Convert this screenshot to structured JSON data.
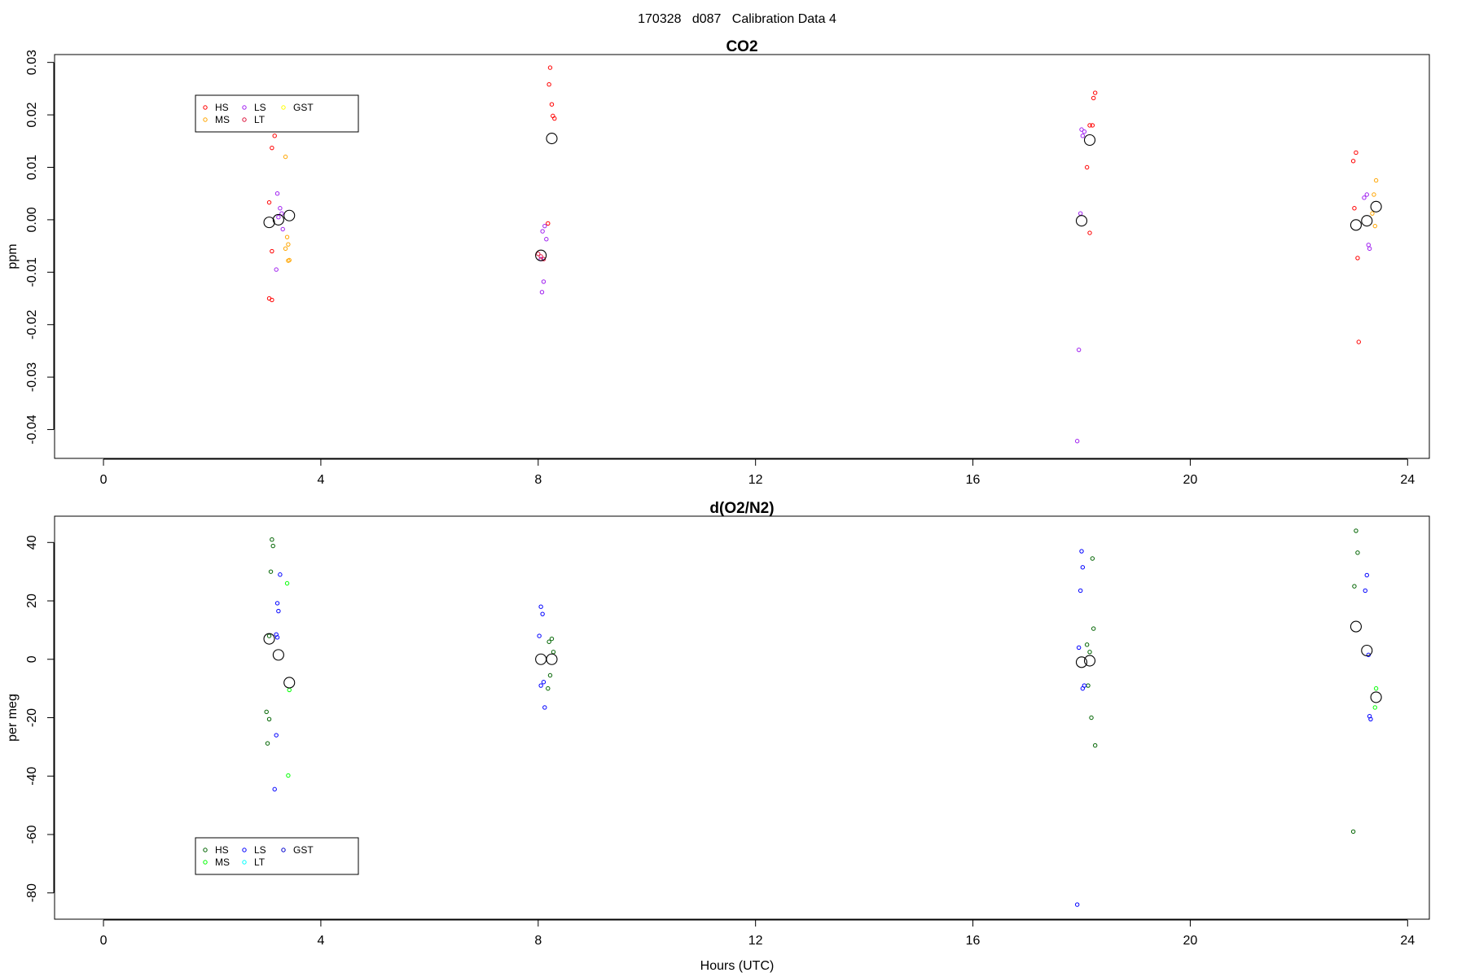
{
  "figure": {
    "title": "170328   d087   Calibration Data 4"
  },
  "chart_data": [
    {
      "type": "scatter",
      "title": "CO2",
      "xlabel": "",
      "ylabel": "ppm",
      "xlim": [
        -0.9,
        24.4
      ],
      "ylim": [
        -0.0455,
        0.0315
      ],
      "xticks": [
        0,
        4,
        8,
        12,
        16,
        20,
        24
      ],
      "yticks": [
        -0.04,
        -0.03,
        -0.02,
        -0.01,
        0.0,
        0.01,
        0.02,
        0.03
      ],
      "ytick_labels": [
        "-0.04",
        "-0.03",
        "-0.02",
        "-0.01",
        "0.00",
        "0.01",
        "0.02",
        "0.03"
      ],
      "grid": false,
      "legend_position": "top-left",
      "legend": [
        {
          "label": "HS",
          "color": "#ff0000"
        },
        {
          "label": "MS",
          "color": "#ffa500"
        },
        {
          "label": "LS",
          "color": "#a020f0"
        },
        {
          "label": "LT",
          "color": "#dc143c"
        },
        {
          "label": "GST",
          "color": "#ffff00"
        }
      ],
      "series": [
        {
          "name": "HS",
          "color": "#ff0000",
          "points": [
            [
              3.05,
              0.0033
            ],
            [
              3.1,
              0.0137
            ],
            [
              3.15,
              0.016
            ],
            [
              3.1,
              -0.006
            ],
            [
              3.05,
              -0.015
            ],
            [
              3.1,
              -0.0153
            ],
            [
              8.22,
              0.029
            ],
            [
              8.2,
              0.0258
            ],
            [
              8.25,
              0.022
            ],
            [
              8.27,
              0.0198
            ],
            [
              8.3,
              0.0193
            ],
            [
              8.18,
              -0.0007
            ],
            [
              18.15,
              0.018
            ],
            [
              18.2,
              0.018
            ],
            [
              18.25,
              0.0242
            ],
            [
              18.22,
              0.0232
            ],
            [
              18.1,
              0.01
            ],
            [
              18.15,
              -0.0025
            ],
            [
              23.05,
              0.0128
            ],
            [
              23.0,
              0.0112
            ],
            [
              23.02,
              0.0022
            ],
            [
              23.08,
              -0.0073
            ],
            [
              23.1,
              -0.0233
            ]
          ]
        },
        {
          "name": "MS",
          "color": "#ffa500",
          "points": [
            [
              3.35,
              0.012
            ],
            [
              3.38,
              -0.0033
            ],
            [
              3.4,
              -0.0047
            ],
            [
              3.35,
              -0.0055
            ],
            [
              3.42,
              -0.0077
            ],
            [
              3.4,
              -0.0078
            ],
            [
              23.42,
              0.0075
            ],
            [
              23.38,
              0.0048
            ],
            [
              23.35,
              0.0012
            ],
            [
              23.4,
              -0.0012
            ]
          ]
        },
        {
          "name": "LS",
          "color": "#a020f0",
          "points": [
            [
              3.2,
              0.005
            ],
            [
              3.25,
              0.0022
            ],
            [
              3.28,
              0.0012
            ],
            [
              3.22,
              0.0005
            ],
            [
              3.3,
              -0.0018
            ],
            [
              3.18,
              -0.0095
            ],
            [
              8.12,
              -0.0012
            ],
            [
              8.08,
              -0.0022
            ],
            [
              8.15,
              -0.0037
            ],
            [
              8.05,
              -0.0075
            ],
            [
              8.1,
              -0.0118
            ],
            [
              8.07,
              -0.0138
            ],
            [
              18.0,
              0.0172
            ],
            [
              18.05,
              0.0168
            ],
            [
              18.02,
              0.016
            ],
            [
              17.98,
              0.0012
            ],
            [
              17.95,
              -0.0248
            ],
            [
              17.92,
              -0.0422
            ],
            [
              23.25,
              0.0048
            ],
            [
              23.2,
              0.0042
            ],
            [
              23.28,
              -0.0048
            ],
            [
              23.3,
              -0.0055
            ]
          ]
        },
        {
          "name": "LT",
          "color": "#dc143c",
          "points": [
            [
              8.0,
              -0.0065
            ],
            [
              8.05,
              -0.007
            ],
            [
              8.1,
              -0.0075
            ]
          ]
        },
        {
          "name": "GST",
          "color": "#ffff00",
          "points": []
        }
      ],
      "means": [
        [
          3.05,
          -0.0005
        ],
        [
          3.22,
          0.0
        ],
        [
          3.42,
          0.0008
        ],
        [
          8.05,
          -0.0068
        ],
        [
          8.25,
          0.0155
        ],
        [
          18.0,
          -0.0002
        ],
        [
          18.15,
          0.0152
        ],
        [
          23.05,
          -0.001
        ],
        [
          23.25,
          -0.0002
        ],
        [
          23.42,
          0.0025
        ]
      ]
    },
    {
      "type": "scatter",
      "title": "d(O2/N2)",
      "xlabel": "Hours (UTC)",
      "ylabel": "per meg",
      "xlim": [
        -0.9,
        24.4
      ],
      "ylim": [
        -89,
        49
      ],
      "xticks": [
        0,
        4,
        8,
        12,
        16,
        20,
        24
      ],
      "yticks": [
        -80,
        -60,
        -40,
        -20,
        0,
        20,
        40
      ],
      "ytick_labels": [
        "-80",
        "-60",
        "-40",
        "-20",
        "0",
        "20",
        "40"
      ],
      "grid": false,
      "legend_position": "bottom-left",
      "legend": [
        {
          "label": "HS",
          "color": "#006400"
        },
        {
          "label": "MS",
          "color": "#00ff00"
        },
        {
          "label": "LS",
          "color": "#0000ff"
        },
        {
          "label": "LT",
          "color": "#00ffff"
        },
        {
          "label": "GST",
          "color": "#0000cd"
        }
      ],
      "series": [
        {
          "name": "HS",
          "color": "#006400",
          "points": [
            [
              3.1,
              41
            ],
            [
              3.12,
              38.8
            ],
            [
              3.08,
              30
            ],
            [
              3.05,
              8
            ],
            [
              3.0,
              -18
            ],
            [
              3.05,
              -20.5
            ],
            [
              3.02,
              -28.8
            ],
            [
              8.2,
              6
            ],
            [
              8.25,
              7
            ],
            [
              8.28,
              2.5
            ],
            [
              8.22,
              -5.5
            ],
            [
              8.18,
              -10
            ],
            [
              18.2,
              34.5
            ],
            [
              18.22,
              10.5
            ],
            [
              18.1,
              5
            ],
            [
              18.15,
              2.5
            ],
            [
              18.12,
              -9
            ],
            [
              18.18,
              -20
            ],
            [
              18.25,
              -29.5
            ],
            [
              23.05,
              44
            ],
            [
              23.08,
              36.5
            ],
            [
              23.02,
              25
            ],
            [
              23.0,
              -59
            ]
          ]
        },
        {
          "name": "MS",
          "color": "#00ff00",
          "points": [
            [
              3.38,
              26
            ],
            [
              3.42,
              -10.5
            ],
            [
              3.4,
              -39.8
            ],
            [
              23.42,
              -10
            ],
            [
              23.4,
              -16.5
            ]
          ]
        },
        {
          "name": "LS",
          "color": "#0000ff",
          "points": [
            [
              3.25,
              29
            ],
            [
              3.2,
              19.2
            ],
            [
              3.22,
              16.5
            ],
            [
              3.18,
              8.5
            ],
            [
              3.2,
              7.5
            ],
            [
              3.18,
              -26
            ],
            [
              3.15,
              -44.5
            ],
            [
              8.05,
              18
            ],
            [
              8.08,
              15.5
            ],
            [
              8.02,
              8
            ],
            [
              8.1,
              -7.8
            ],
            [
              8.05,
              -9
            ],
            [
              8.12,
              -16.5
            ],
            [
              18.0,
              37
            ],
            [
              18.02,
              31.5
            ],
            [
              17.98,
              23.5
            ],
            [
              17.95,
              4
            ],
            [
              18.05,
              -9
            ],
            [
              18.02,
              -10
            ],
            [
              17.92,
              -84
            ],
            [
              23.25,
              28.8
            ],
            [
              23.22,
              23.5
            ],
            [
              23.28,
              1.5
            ],
            [
              23.3,
              -19.5
            ],
            [
              23.32,
              -20.5
            ]
          ]
        },
        {
          "name": "LT",
          "color": "#00ffff",
          "points": []
        },
        {
          "name": "GST",
          "color": "#0000cd",
          "points": []
        }
      ],
      "means": [
        [
          3.05,
          7
        ],
        [
          3.22,
          1.5
        ],
        [
          3.42,
          -8
        ],
        [
          8.05,
          0
        ],
        [
          8.25,
          0
        ],
        [
          18.0,
          -1
        ],
        [
          18.15,
          -0.5
        ],
        [
          23.05,
          11.2
        ],
        [
          23.25,
          3
        ],
        [
          23.42,
          -13
        ]
      ]
    }
  ]
}
